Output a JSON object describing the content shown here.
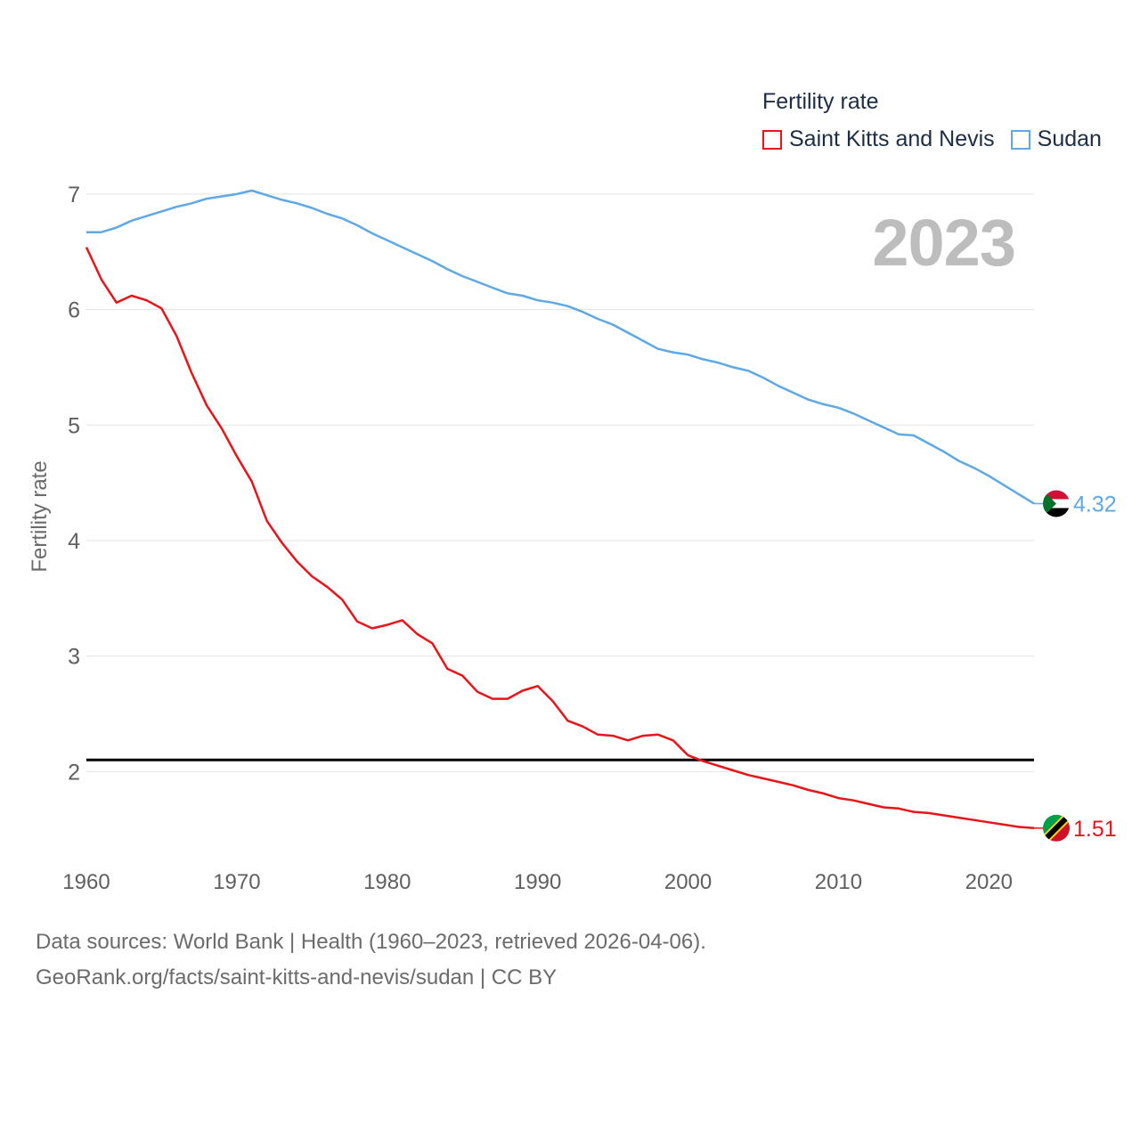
{
  "legend": {
    "title": "Fertility rate",
    "items": [
      {
        "label": "Saint Kitts and Nevis",
        "color": "#e8141a"
      },
      {
        "label": "Sudan",
        "color": "#5ea8e6"
      }
    ]
  },
  "current_year": "2023",
  "footer": {
    "line1": "Data sources: World Bank | Health (1960–2023, retrieved 2026-04-06).",
    "line2": "GeoRank.org/facts/saint-kitts-and-nevis/sudan | CC BY"
  },
  "chart_data": {
    "type": "line",
    "ylabel": "Fertility rate",
    "xlabel": "",
    "xlim": [
      1960,
      2023
    ],
    "ylim": [
      1.2,
      7.2
    ],
    "x_ticks": [
      1960,
      1970,
      1980,
      1990,
      2000,
      2010,
      2020
    ],
    "y_ticks": [
      2,
      3,
      4,
      5,
      6,
      7
    ],
    "reference_line": {
      "value": 2.1,
      "color": "#000000"
    },
    "x": [
      1960,
      1961,
      1962,
      1963,
      1964,
      1965,
      1966,
      1967,
      1968,
      1969,
      1970,
      1971,
      1972,
      1973,
      1974,
      1975,
      1976,
      1977,
      1978,
      1979,
      1980,
      1981,
      1982,
      1983,
      1984,
      1985,
      1986,
      1987,
      1988,
      1989,
      1990,
      1991,
      1992,
      1993,
      1994,
      1995,
      1996,
      1997,
      1998,
      1999,
      2000,
      2001,
      2002,
      2003,
      2004,
      2005,
      2006,
      2007,
      2008,
      2009,
      2010,
      2011,
      2012,
      2013,
      2014,
      2015,
      2016,
      2017,
      2018,
      2019,
      2020,
      2021,
      2022,
      2023
    ],
    "series": [
      {
        "name": "Saint Kitts and Nevis",
        "color": "#e8141a",
        "end_label": "1.51",
        "values": [
          6.54,
          6.26,
          6.06,
          6.12,
          6.08,
          6.01,
          5.77,
          5.45,
          5.17,
          4.97,
          4.73,
          4.51,
          4.17,
          3.98,
          3.82,
          3.69,
          3.6,
          3.49,
          3.3,
          3.24,
          3.27,
          3.31,
          3.19,
          3.11,
          2.89,
          2.83,
          2.69,
          2.63,
          2.63,
          2.7,
          2.74,
          2.61,
          2.44,
          2.39,
          2.32,
          2.31,
          2.27,
          2.31,
          2.32,
          2.27,
          2.14,
          2.09,
          2.05,
          2.01,
          1.97,
          1.94,
          1.91,
          1.88,
          1.84,
          1.81,
          1.77,
          1.75,
          1.72,
          1.69,
          1.68,
          1.65,
          1.64,
          1.62,
          1.6,
          1.58,
          1.56,
          1.54,
          1.52,
          1.51
        ]
      },
      {
        "name": "Sudan",
        "color": "#5ea8e6",
        "end_label": "4.32",
        "values": [
          6.67,
          6.67,
          6.71,
          6.77,
          6.81,
          6.85,
          6.89,
          6.92,
          6.96,
          6.98,
          7.0,
          7.03,
          6.99,
          6.95,
          6.92,
          6.88,
          6.83,
          6.79,
          6.73,
          6.66,
          6.6,
          6.54,
          6.48,
          6.42,
          6.35,
          6.29,
          6.24,
          6.19,
          6.14,
          6.12,
          6.08,
          6.06,
          6.03,
          5.98,
          5.92,
          5.87,
          5.8,
          5.73,
          5.66,
          5.63,
          5.61,
          5.57,
          5.54,
          5.5,
          5.47,
          5.41,
          5.34,
          5.28,
          5.22,
          5.18,
          5.15,
          5.1,
          5.04,
          4.98,
          4.92,
          4.91,
          4.84,
          4.77,
          4.69,
          4.63,
          4.56,
          4.48,
          4.4,
          4.32
        ]
      }
    ]
  }
}
